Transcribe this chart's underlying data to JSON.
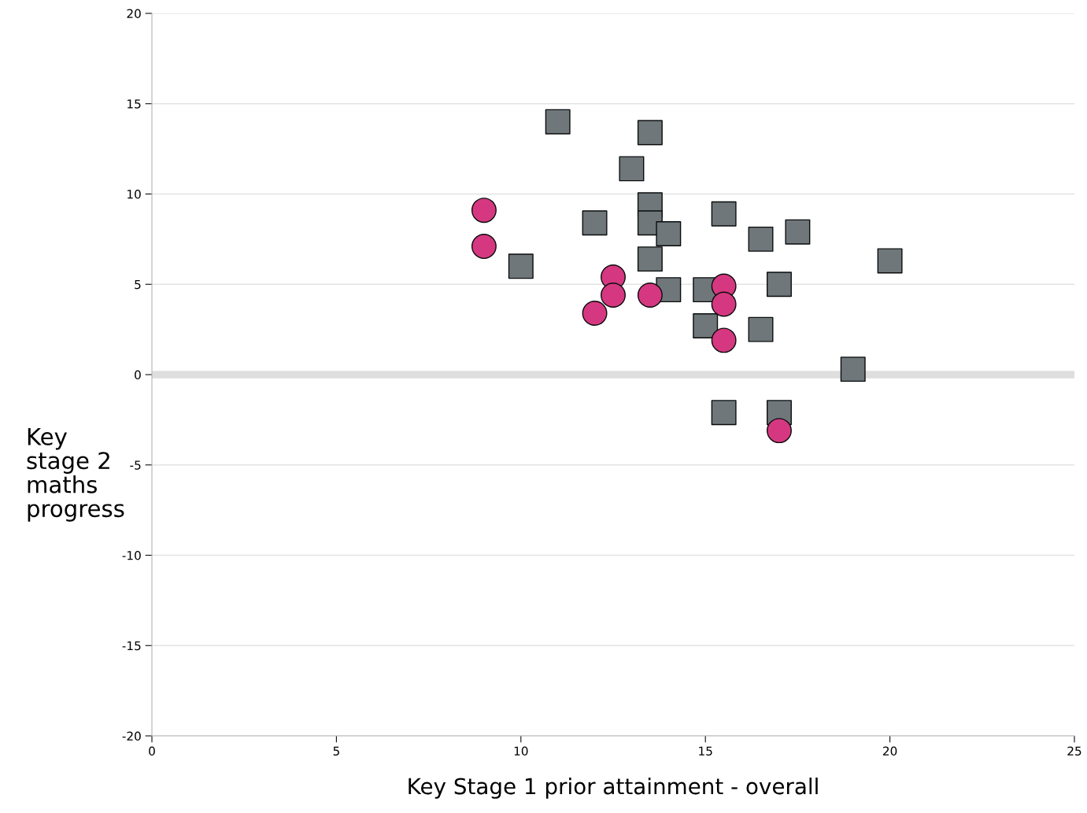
{
  "chart_data": {
    "type": "scatter",
    "xlabel": "Key Stage 1 prior attainment - overall",
    "ylabel": "Key\nstage 2\nmaths\nprogress",
    "xlim": [
      0,
      25
    ],
    "xticks": [
      0,
      5,
      10,
      15,
      20,
      25
    ],
    "ylim": [
      -20,
      20
    ],
    "yticks": [
      -20,
      -15,
      -10,
      -5,
      0,
      5,
      10,
      15,
      20
    ],
    "grid": "y",
    "ref_lines": [
      {
        "axis": "y",
        "value": 0,
        "color": "#dedede"
      }
    ],
    "series": [
      {
        "color": "#6f777b",
        "marker": "square",
        "x": [
          11,
          13.5,
          13,
          13.5,
          12,
          13.5,
          14,
          15.5,
          16.5,
          17.5,
          20,
          10,
          13.5,
          14,
          15,
          17,
          15,
          16.5,
          19,
          15.5,
          17
        ],
        "values": [
          14.0,
          13.4,
          11.4,
          9.4,
          8.4,
          8.4,
          7.8,
          8.9,
          7.5,
          7.9,
          6.3,
          6.0,
          6.4,
          4.7,
          4.7,
          5.0,
          2.7,
          2.5,
          0.3,
          -2.1,
          -2.1
        ]
      },
      {
        "color": "#d53880",
        "marker": "circle",
        "x": [
          9,
          9,
          12.5,
          12.5,
          13.5,
          12,
          15.5,
          15.5,
          15.5,
          17
        ],
        "values": [
          9.1,
          7.1,
          5.4,
          4.4,
          4.4,
          3.4,
          4.9,
          3.9,
          1.9,
          -3.1
        ]
      }
    ]
  }
}
